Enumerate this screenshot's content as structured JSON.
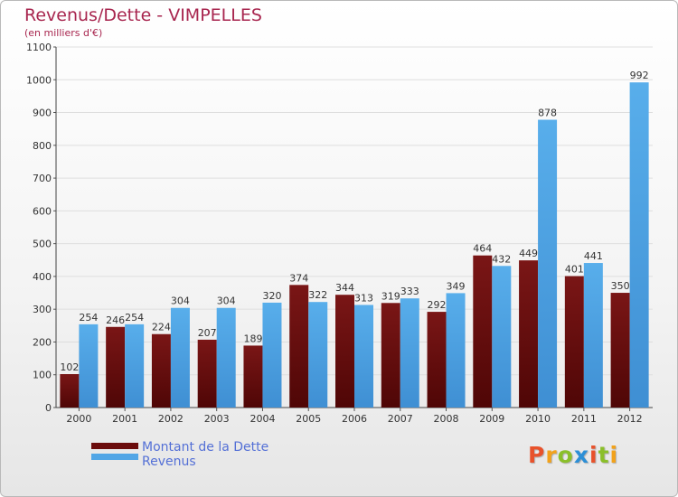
{
  "chart_data": {
    "type": "bar",
    "title": "Revenus/Dette - VIMPELLES",
    "subtitle": "(en milliers d'€)",
    "categories": [
      "2000",
      "2001",
      "2002",
      "2003",
      "2004",
      "2005",
      "2006",
      "2007",
      "2008",
      "2009",
      "2010",
      "2011",
      "2012"
    ],
    "series": [
      {
        "name": "Montant de la Dette",
        "color": "#6b0c0c",
        "values": [
          102,
          246,
          224,
          207,
          189,
          374,
          344,
          319,
          292,
          464,
          449,
          401,
          350
        ]
      },
      {
        "name": "Revenus",
        "color": "#52a6e6",
        "values": [
          254,
          254,
          304,
          304,
          320,
          322,
          313,
          333,
          349,
          432,
          878,
          441,
          992
        ]
      }
    ],
    "ylim": [
      0,
      1100
    ],
    "yticks": [
      0,
      100,
      200,
      300,
      400,
      500,
      600,
      700,
      800,
      900,
      1000,
      1100
    ],
    "grid": true,
    "legend": "bottom-left"
  },
  "brand": {
    "logo_letters": [
      {
        "ch": "P",
        "color": "#e8522b"
      },
      {
        "ch": "r",
        "color": "#f2a21b"
      },
      {
        "ch": "o",
        "color": "#8bbf2a"
      },
      {
        "ch": "x",
        "color": "#2c8fd6"
      },
      {
        "ch": "i",
        "color": "#e8522b"
      },
      {
        "ch": "t",
        "color": "#8bbf2a"
      },
      {
        "ch": "i",
        "color": "#f2a21b"
      }
    ]
  }
}
